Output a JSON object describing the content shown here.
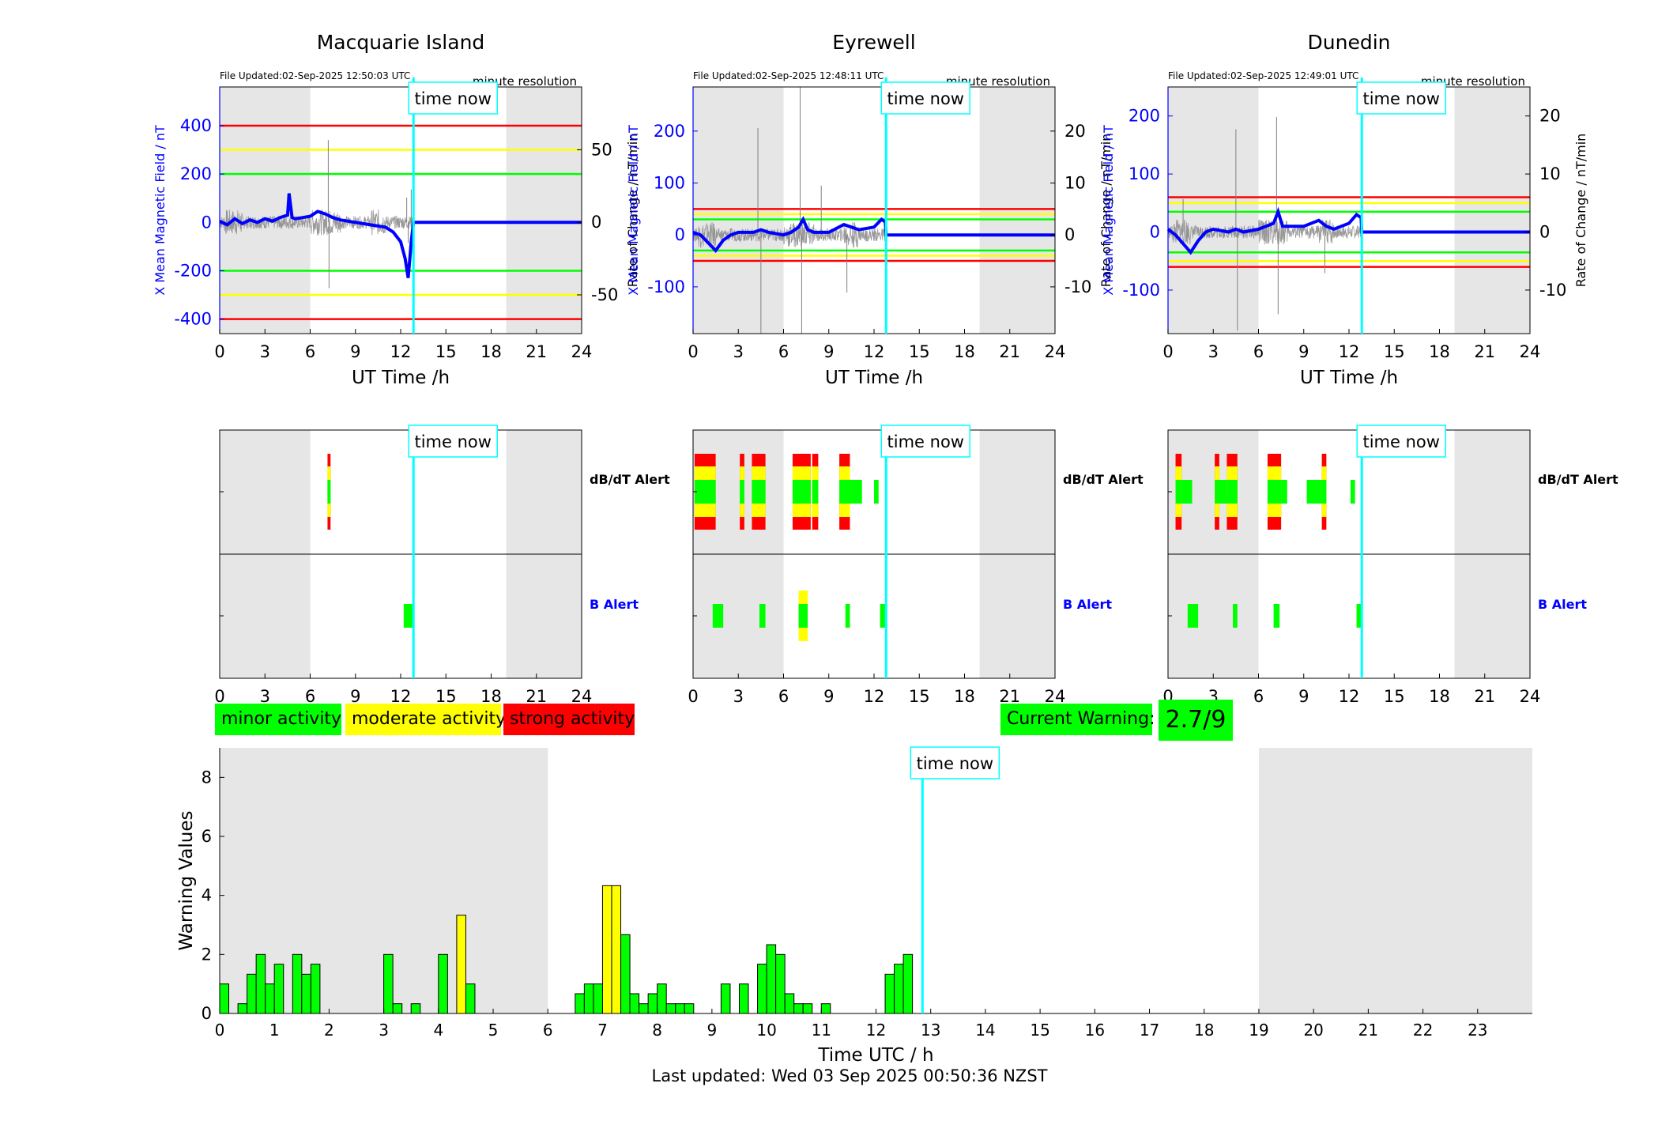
{
  "footer": "Last updated: Wed 03 Sep 2025 00:50:36 NZST",
  "current_warning": {
    "label": "Current Warning:",
    "value": "2.7/9"
  },
  "legend": [
    {
      "label": "minor activity",
      "color": "#00ff00"
    },
    {
      "label": "moderate activity",
      "color": "#ffff00"
    },
    {
      "label": "strong activity",
      "color": "#ff0000"
    }
  ],
  "colors": {
    "x_field": "#0000ff",
    "rate": "#808080",
    "time_now": "#00ffff",
    "shade": "#e6e6e6",
    "minor": "#00ff00",
    "moderate": "#ffff00",
    "strong": "#ff0000"
  },
  "time_now_label": "time now",
  "chart_data": [
    {
      "type": "line",
      "station": "Macquarie Island",
      "file_updated": "File Updated:02-Sep-2025 12:50:03 UTC",
      "resolution": "minute resolution",
      "xlabel": "UT Time /h",
      "ylabel_left": "X Mean Magnetic Field / nT",
      "ylabel_right": "Rate of Change / nT/min",
      "xlim": [
        0,
        24
      ],
      "xticks": [
        "0",
        "3",
        "6",
        "9",
        "12",
        "15",
        "18",
        "21",
        "24"
      ],
      "ylim_left": [
        -460,
        560
      ],
      "yticks_left": [
        "-400",
        "-200",
        "0",
        "200",
        "400"
      ],
      "ylim_right": [
        -76.7,
        93.3
      ],
      "yticks_right": [
        "-50",
        "0",
        "50"
      ],
      "threshold_lines": [
        {
          "y": 400,
          "color": "red"
        },
        {
          "y": 300,
          "color": "yellow"
        },
        {
          "y": 200,
          "color": "green"
        },
        {
          "y": -200,
          "color": "green"
        },
        {
          "y": -300,
          "color": "yellow"
        },
        {
          "y": -400,
          "color": "red"
        }
      ],
      "shaded_hours": [
        [
          0,
          6
        ],
        [
          19,
          24
        ]
      ],
      "time_now": 12.85,
      "x_field": [
        [
          0,
          5
        ],
        [
          0.5,
          -10
        ],
        [
          1,
          15
        ],
        [
          1.5,
          -5
        ],
        [
          2,
          10
        ],
        [
          2.5,
          0
        ],
        [
          3,
          15
        ],
        [
          3.5,
          5
        ],
        [
          4,
          20
        ],
        [
          4.5,
          30
        ],
        [
          4.6,
          120
        ],
        [
          4.8,
          20
        ],
        [
          5,
          15
        ],
        [
          5.5,
          20
        ],
        [
          6,
          25
        ],
        [
          6.5,
          45
        ],
        [
          7,
          35
        ],
        [
          7.5,
          20
        ],
        [
          8,
          10
        ],
        [
          9,
          0
        ],
        [
          10,
          -10
        ],
        [
          11,
          -20
        ],
        [
          11.5,
          -40
        ],
        [
          12,
          -80
        ],
        [
          12.3,
          -150
        ],
        [
          12.5,
          -230
        ],
        [
          12.7,
          -80
        ],
        [
          12.85,
          0
        ],
        [
          24,
          0
        ]
      ],
      "rate_spikes": [
        [
          7.2,
          100
        ],
        [
          7.25,
          -80
        ],
        [
          12.4,
          30
        ],
        [
          12.5,
          -25
        ],
        [
          12.7,
          40
        ]
      ],
      "dbdt_alerts": [
        {
          "start": 7.15,
          "end": 7.35,
          "level": "strong"
        }
      ],
      "b_alerts": [
        {
          "start": 12.2,
          "end": 12.8,
          "level": "minor"
        }
      ],
      "alert_labels": {
        "dbdt": "dB/dT Alert",
        "b": "B Alert"
      }
    },
    {
      "type": "line",
      "station": "Eyrewell",
      "file_updated": "File Updated:02-Sep-2025 12:48:11 UTC",
      "resolution": "minute resolution",
      "xlabel": "UT Time /h",
      "ylabel_left": "X Mean Magnetic Field / nT",
      "ylabel_right": "Rate of Change / nT/min",
      "xlim": [
        0,
        24
      ],
      "xticks": [
        "0",
        "3",
        "6",
        "9",
        "12",
        "15",
        "18",
        "21",
        "24"
      ],
      "ylim_left": [
        -190,
        285
      ],
      "yticks_left": [
        "-100",
        "0",
        "100",
        "200"
      ],
      "ylim_right": [
        -19,
        28.5
      ],
      "yticks_right": [
        "-10",
        "0",
        "10",
        "20"
      ],
      "threshold_lines": [
        {
          "y": 50,
          "color": "red"
        },
        {
          "y": 40,
          "color": "yellow"
        },
        {
          "y": 30,
          "color": "green"
        },
        {
          "y": -30,
          "color": "green"
        },
        {
          "y": -40,
          "color": "yellow"
        },
        {
          "y": -50,
          "color": "red"
        }
      ],
      "shaded_hours": [
        [
          0,
          6
        ],
        [
          19,
          24
        ]
      ],
      "time_now": 12.8,
      "x_field": [
        [
          0,
          5
        ],
        [
          0.5,
          0
        ],
        [
          1,
          -15
        ],
        [
          1.5,
          -30
        ],
        [
          2,
          -10
        ],
        [
          2.5,
          0
        ],
        [
          3,
          5
        ],
        [
          4,
          5
        ],
        [
          4.5,
          10
        ],
        [
          5,
          5
        ],
        [
          6,
          0
        ],
        [
          6.5,
          5
        ],
        [
          7,
          15
        ],
        [
          7.3,
          30
        ],
        [
          7.6,
          10
        ],
        [
          8,
          5
        ],
        [
          9,
          5
        ],
        [
          10,
          20
        ],
        [
          10.5,
          15
        ],
        [
          11,
          10
        ],
        [
          12,
          15
        ],
        [
          12.5,
          30
        ],
        [
          12.75,
          25
        ],
        [
          12.8,
          0
        ],
        [
          24,
          0
        ]
      ],
      "rate_spikes": [
        [
          4.3,
          130
        ],
        [
          4.5,
          -120
        ],
        [
          7.1,
          280
        ],
        [
          7.2,
          -120
        ],
        [
          8.5,
          60
        ],
        [
          10.2,
          -70
        ]
      ],
      "dbdt_alerts": [
        {
          "start": 0.1,
          "end": 1.5,
          "level": "strong"
        },
        {
          "start": 3.1,
          "end": 3.4,
          "level": "strong"
        },
        {
          "start": 3.9,
          "end": 4.8,
          "level": "strong"
        },
        {
          "start": 6.6,
          "end": 7.8,
          "level": "strong"
        },
        {
          "start": 7.9,
          "end": 8.3,
          "level": "strong"
        },
        {
          "start": 9.7,
          "end": 10.4,
          "level": "strong"
        },
        {
          "start": 10.4,
          "end": 11.2,
          "level": "minor"
        },
        {
          "start": 12.0,
          "end": 12.3,
          "level": "minor"
        }
      ],
      "b_alerts": [
        {
          "start": 1.3,
          "end": 2.0,
          "level": "minor"
        },
        {
          "start": 4.4,
          "end": 4.8,
          "level": "minor"
        },
        {
          "start": 7.0,
          "end": 7.6,
          "level": "moderate"
        },
        {
          "start": 10.1,
          "end": 10.4,
          "level": "minor"
        },
        {
          "start": 12.4,
          "end": 12.8,
          "level": "minor"
        }
      ],
      "alert_labels": {
        "dbdt": "dB/dT Alert",
        "b": "B Alert"
      }
    },
    {
      "type": "line",
      "station": "Dunedin",
      "file_updated": "File Updated:02-Sep-2025 12:49:01 UTC",
      "resolution": "minute resolution",
      "xlabel": "UT Time /h",
      "ylabel_left": "X Mean Magnetic Field / nT",
      "ylabel_right": "Rate of Change / nT/min",
      "xlim": [
        0,
        24
      ],
      "xticks": [
        "0",
        "3",
        "6",
        "9",
        "12",
        "15",
        "18",
        "21",
        "24"
      ],
      "ylim_left": [
        -175,
        250
      ],
      "yticks_left": [
        "-100",
        "0",
        "100",
        "200"
      ],
      "ylim_right": [
        -17.5,
        25
      ],
      "yticks_right": [
        "-10",
        "0",
        "10",
        "20"
      ],
      "threshold_lines": [
        {
          "y": 60,
          "color": "red"
        },
        {
          "y": 50,
          "color": "yellow"
        },
        {
          "y": 35,
          "color": "green"
        },
        {
          "y": -35,
          "color": "green"
        },
        {
          "y": -50,
          "color": "yellow"
        },
        {
          "y": -60,
          "color": "red"
        }
      ],
      "shaded_hours": [
        [
          0,
          6
        ],
        [
          19,
          24
        ]
      ],
      "time_now": 12.85,
      "x_field": [
        [
          0,
          5
        ],
        [
          0.5,
          -5
        ],
        [
          1,
          -20
        ],
        [
          1.5,
          -35
        ],
        [
          2,
          -15
        ],
        [
          2.5,
          0
        ],
        [
          3,
          5
        ],
        [
          4,
          0
        ],
        [
          4.5,
          5
        ],
        [
          5,
          0
        ],
        [
          6,
          5
        ],
        [
          6.5,
          10
        ],
        [
          7,
          15
        ],
        [
          7.3,
          35
        ],
        [
          7.6,
          10
        ],
        [
          8,
          10
        ],
        [
          9,
          10
        ],
        [
          10,
          20
        ],
        [
          10.5,
          10
        ],
        [
          11,
          5
        ],
        [
          12,
          15
        ],
        [
          12.5,
          30
        ],
        [
          12.8,
          25
        ],
        [
          12.85,
          0
        ],
        [
          24,
          0
        ]
      ],
      "rate_spikes": [
        [
          4.5,
          125
        ],
        [
          4.6,
          -120
        ],
        [
          7.2,
          140
        ],
        [
          7.3,
          -100
        ],
        [
          1,
          40
        ],
        [
          10.4,
          -50
        ]
      ],
      "dbdt_alerts": [
        {
          "start": 0.5,
          "end": 0.9,
          "level": "strong"
        },
        {
          "start": 0.9,
          "end": 1.6,
          "level": "minor"
        },
        {
          "start": 3.1,
          "end": 3.4,
          "level": "strong"
        },
        {
          "start": 3.4,
          "end": 3.9,
          "level": "minor"
        },
        {
          "start": 3.9,
          "end": 4.6,
          "level": "strong"
        },
        {
          "start": 6.6,
          "end": 7.5,
          "level": "strong"
        },
        {
          "start": 7.5,
          "end": 7.9,
          "level": "minor"
        },
        {
          "start": 9.2,
          "end": 10.2,
          "level": "minor"
        },
        {
          "start": 10.2,
          "end": 10.5,
          "level": "strong"
        },
        {
          "start": 12.1,
          "end": 12.4,
          "level": "minor"
        }
      ],
      "b_alerts": [
        {
          "start": 1.3,
          "end": 2.0,
          "level": "minor"
        },
        {
          "start": 4.3,
          "end": 4.6,
          "level": "minor"
        },
        {
          "start": 7.0,
          "end": 7.4,
          "level": "minor"
        },
        {
          "start": 12.5,
          "end": 12.8,
          "level": "minor"
        }
      ],
      "alert_labels": {
        "dbdt": "dB/dT Alert",
        "b": "B Alert"
      }
    },
    {
      "type": "bar",
      "xlabel": "Time UTC / h",
      "ylabel": "Warning Values",
      "xlim": [
        0,
        24
      ],
      "ylim": [
        0,
        9
      ],
      "xticks": [
        "0",
        "1",
        "2",
        "3",
        "4",
        "5",
        "6",
        "7",
        "8",
        "9",
        "10",
        "11",
        "12",
        "13",
        "14",
        "15",
        "16",
        "17",
        "18",
        "19",
        "20",
        "21",
        "22",
        "23"
      ],
      "yticks": [
        "0",
        "2",
        "4",
        "6",
        "8"
      ],
      "shaded_hours": [
        [
          0,
          6
        ],
        [
          19,
          24
        ]
      ],
      "time_now": 12.85,
      "bin_width_h": 0.1667,
      "bars": [
        {
          "t": 0.083,
          "v": 1,
          "level": "minor"
        },
        {
          "t": 0.417,
          "v": 0.33,
          "level": "minor"
        },
        {
          "t": 0.583,
          "v": 1.33,
          "level": "minor"
        },
        {
          "t": 0.75,
          "v": 2,
          "level": "minor"
        },
        {
          "t": 0.917,
          "v": 1,
          "level": "minor"
        },
        {
          "t": 1.083,
          "v": 1.67,
          "level": "minor"
        },
        {
          "t": 1.417,
          "v": 2,
          "level": "minor"
        },
        {
          "t": 1.583,
          "v": 1.33,
          "level": "minor"
        },
        {
          "t": 1.75,
          "v": 1.67,
          "level": "minor"
        },
        {
          "t": 3.083,
          "v": 2,
          "level": "minor"
        },
        {
          "t": 3.25,
          "v": 0.33,
          "level": "minor"
        },
        {
          "t": 3.583,
          "v": 0.33,
          "level": "minor"
        },
        {
          "t": 4.083,
          "v": 2,
          "level": "minor"
        },
        {
          "t": 4.417,
          "v": 3.33,
          "level": "moderate"
        },
        {
          "t": 4.583,
          "v": 1,
          "level": "minor"
        },
        {
          "t": 6.583,
          "v": 0.67,
          "level": "minor"
        },
        {
          "t": 6.75,
          "v": 1,
          "level": "minor"
        },
        {
          "t": 6.917,
          "v": 1,
          "level": "minor"
        },
        {
          "t": 7.083,
          "v": 4.33,
          "level": "moderate"
        },
        {
          "t": 7.25,
          "v": 4.33,
          "level": "moderate"
        },
        {
          "t": 7.417,
          "v": 2.67,
          "level": "minor"
        },
        {
          "t": 7.583,
          "v": 0.67,
          "level": "minor"
        },
        {
          "t": 7.75,
          "v": 0.33,
          "level": "minor"
        },
        {
          "t": 7.917,
          "v": 0.67,
          "level": "minor"
        },
        {
          "t": 8.083,
          "v": 1,
          "level": "minor"
        },
        {
          "t": 8.25,
          "v": 0.33,
          "level": "minor"
        },
        {
          "t": 8.417,
          "v": 0.33,
          "level": "minor"
        },
        {
          "t": 8.583,
          "v": 0.33,
          "level": "minor"
        },
        {
          "t": 9.25,
          "v": 1,
          "level": "minor"
        },
        {
          "t": 9.583,
          "v": 1,
          "level": "minor"
        },
        {
          "t": 9.917,
          "v": 1.67,
          "level": "minor"
        },
        {
          "t": 10.083,
          "v": 2.33,
          "level": "minor"
        },
        {
          "t": 10.25,
          "v": 2,
          "level": "minor"
        },
        {
          "t": 10.417,
          "v": 0.67,
          "level": "minor"
        },
        {
          "t": 10.583,
          "v": 0.33,
          "level": "minor"
        },
        {
          "t": 10.75,
          "v": 0.33,
          "level": "minor"
        },
        {
          "t": 11.083,
          "v": 0.33,
          "level": "minor"
        },
        {
          "t": 12.25,
          "v": 1.33,
          "level": "minor"
        },
        {
          "t": 12.417,
          "v": 1.67,
          "level": "minor"
        },
        {
          "t": 12.583,
          "v": 2,
          "level": "minor"
        }
      ]
    }
  ]
}
